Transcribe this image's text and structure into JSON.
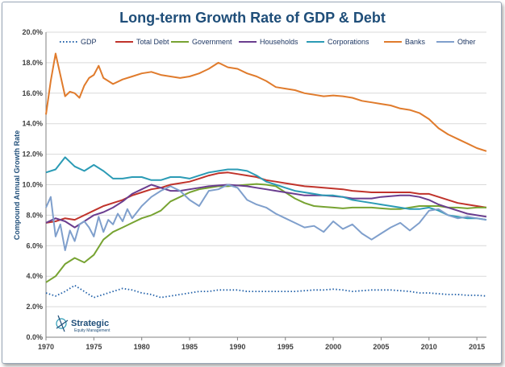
{
  "chart_data": {
    "type": "line",
    "title": "Long-term Growth Rate of GDP & Debt",
    "ylabel": "Compound Annual Growth Rate",
    "xlabel": "",
    "xlim": [
      1970,
      2016
    ],
    "ylim": [
      0,
      20
    ],
    "x_ticks": [
      "1970",
      "1975",
      "1980",
      "1985",
      "1990",
      "1995",
      "2000",
      "2005",
      "2010",
      "2015"
    ],
    "y_ticks": [
      "0.0%",
      "2.0%",
      "4.0%",
      "6.0%",
      "8.0%",
      "10.0%",
      "12.0%",
      "14.0%",
      "16.0%",
      "18.0%",
      "20.0%"
    ],
    "grid": true,
    "legend_position": "top",
    "series": [
      {
        "name": "GDP",
        "color": "#1f5fa8",
        "dash": "dotted",
        "x": [
          1970,
          1971,
          1972,
          1973,
          1974,
          1975,
          1976,
          1977,
          1978,
          1979,
          1980,
          1981,
          1982,
          1983,
          1984,
          1985,
          1986,
          1987,
          1988,
          1989,
          1990,
          1991,
          1992,
          1993,
          1994,
          1995,
          1996,
          1997,
          1998,
          1999,
          2000,
          2001,
          2002,
          2003,
          2004,
          2005,
          2006,
          2007,
          2008,
          2009,
          2010,
          2011,
          2012,
          2013,
          2014,
          2015,
          2016
        ],
        "y": [
          2.9,
          2.7,
          3.0,
          3.4,
          3.0,
          2.6,
          2.8,
          3.0,
          3.2,
          3.1,
          2.9,
          2.8,
          2.6,
          2.7,
          2.8,
          2.9,
          3.0,
          3.0,
          3.1,
          3.1,
          3.1,
          3.0,
          3.0,
          3.0,
          3.0,
          3.0,
          3.0,
          3.05,
          3.1,
          3.1,
          3.15,
          3.1,
          3.0,
          3.05,
          3.1,
          3.1,
          3.1,
          3.05,
          3.0,
          2.9,
          2.9,
          2.85,
          2.8,
          2.8,
          2.75,
          2.75,
          2.7
        ]
      },
      {
        "name": "Total Debt",
        "color": "#c0332b",
        "dash": "solid",
        "x": [
          1970,
          1971,
          1972,
          1973,
          1974,
          1975,
          1976,
          1977,
          1978,
          1979,
          1980,
          1981,
          1982,
          1983,
          1984,
          1985,
          1986,
          1987,
          1988,
          1989,
          1990,
          1991,
          1992,
          1993,
          1994,
          1995,
          1996,
          1997,
          1998,
          1999,
          2000,
          2001,
          2002,
          2003,
          2004,
          2005,
          2006,
          2007,
          2008,
          2009,
          2010,
          2011,
          2012,
          2013,
          2014,
          2015,
          2016
        ],
        "y": [
          7.5,
          7.6,
          7.8,
          7.7,
          8.0,
          8.3,
          8.6,
          8.8,
          9.0,
          9.3,
          9.5,
          9.7,
          9.8,
          10.0,
          10.1,
          10.2,
          10.4,
          10.6,
          10.75,
          10.8,
          10.7,
          10.6,
          10.5,
          10.3,
          10.2,
          10.1,
          10.0,
          9.9,
          9.85,
          9.8,
          9.75,
          9.7,
          9.6,
          9.55,
          9.5,
          9.5,
          9.5,
          9.5,
          9.5,
          9.4,
          9.4,
          9.2,
          9.0,
          8.8,
          8.7,
          8.6,
          8.5
        ]
      },
      {
        "name": "Government",
        "color": "#77a332",
        "dash": "solid",
        "x": [
          1970,
          1971,
          1972,
          1973,
          1974,
          1975,
          1976,
          1977,
          1978,
          1979,
          1980,
          1981,
          1982,
          1983,
          1984,
          1985,
          1986,
          1987,
          1988,
          1989,
          1990,
          1991,
          1992,
          1993,
          1994,
          1995,
          1996,
          1997,
          1998,
          1999,
          2000,
          2001,
          2002,
          2003,
          2004,
          2005,
          2006,
          2007,
          2008,
          2009,
          2010,
          2011,
          2012,
          2013,
          2014,
          2015,
          2016
        ],
        "y": [
          3.6,
          4.0,
          4.8,
          5.2,
          4.9,
          5.4,
          6.4,
          6.9,
          7.2,
          7.5,
          7.8,
          8.0,
          8.3,
          8.9,
          9.2,
          9.5,
          9.7,
          9.8,
          9.9,
          9.9,
          9.95,
          10.0,
          10.05,
          10.0,
          9.9,
          9.5,
          9.1,
          8.8,
          8.6,
          8.55,
          8.5,
          8.45,
          8.5,
          8.5,
          8.5,
          8.45,
          8.4,
          8.4,
          8.5,
          8.6,
          8.6,
          8.6,
          8.5,
          8.5,
          8.45,
          8.5,
          8.5
        ]
      },
      {
        "name": "Households",
        "color": "#6a3d8f",
        "dash": "solid",
        "x": [
          1970,
          1971,
          1972,
          1973,
          1974,
          1975,
          1976,
          1977,
          1978,
          1979,
          1980,
          1981,
          1982,
          1983,
          1984,
          1985,
          1986,
          1987,
          1988,
          1989,
          1990,
          1991,
          1992,
          1993,
          1994,
          1995,
          1996,
          1997,
          1998,
          1999,
          2000,
          2001,
          2002,
          2003,
          2004,
          2005,
          2006,
          2007,
          2008,
          2009,
          2010,
          2011,
          2012,
          2013,
          2014,
          2015,
          2016
        ],
        "y": [
          7.5,
          7.8,
          7.6,
          7.2,
          7.6,
          8.0,
          8.2,
          8.5,
          8.9,
          9.4,
          9.7,
          10.0,
          9.8,
          9.6,
          9.6,
          9.7,
          9.8,
          9.9,
          9.95,
          10.0,
          9.95,
          9.9,
          9.8,
          9.7,
          9.6,
          9.5,
          9.4,
          9.3,
          9.3,
          9.3,
          9.25,
          9.2,
          9.1,
          9.1,
          9.1,
          9.2,
          9.25,
          9.3,
          9.3,
          9.2,
          9.0,
          8.7,
          8.5,
          8.3,
          8.1,
          8.0,
          7.9
        ]
      },
      {
        "name": "Corporations",
        "color": "#2b9bb5",
        "dash": "solid",
        "x": [
          1970,
          1971,
          1972,
          1973,
          1974,
          1975,
          1976,
          1977,
          1978,
          1979,
          1980,
          1981,
          1982,
          1983,
          1984,
          1985,
          1986,
          1987,
          1988,
          1989,
          1990,
          1991,
          1992,
          1993,
          1994,
          1995,
          1996,
          1997,
          1998,
          1999,
          2000,
          2001,
          2002,
          2003,
          2004,
          2005,
          2006,
          2007,
          2008,
          2009,
          2010,
          2011,
          2012,
          2013,
          2014,
          2015,
          2016
        ],
        "y": [
          10.8,
          11.0,
          11.8,
          11.2,
          10.9,
          11.3,
          10.9,
          10.4,
          10.4,
          10.5,
          10.5,
          10.3,
          10.3,
          10.5,
          10.5,
          10.4,
          10.6,
          10.8,
          10.9,
          11.0,
          11.0,
          10.9,
          10.6,
          10.2,
          10.0,
          9.8,
          9.6,
          9.5,
          9.4,
          9.3,
          9.3,
          9.2,
          9.0,
          8.9,
          8.8,
          8.7,
          8.6,
          8.5,
          8.4,
          8.4,
          8.5,
          8.3,
          8.0,
          7.9,
          7.8,
          7.8,
          7.7
        ]
      },
      {
        "name": "Banks",
        "color": "#e07b2c",
        "dash": "solid",
        "x": [
          1970,
          1970.5,
          1971,
          1971.5,
          1972,
          1972.5,
          1973,
          1973.5,
          1974,
          1974.5,
          1975,
          1975.5,
          1976,
          1976.5,
          1977,
          1978,
          1979,
          1980,
          1981,
          1982,
          1983,
          1984,
          1985,
          1986,
          1987,
          1988,
          1989,
          1990,
          1991,
          1992,
          1993,
          1994,
          1995,
          1996,
          1997,
          1998,
          1999,
          2000,
          2001,
          2002,
          2003,
          2004,
          2005,
          2006,
          2007,
          2008,
          2009,
          2010,
          2011,
          2012,
          2013,
          2014,
          2015,
          2016
        ],
        "y": [
          14.6,
          16.8,
          18.6,
          17.2,
          15.8,
          16.1,
          16.0,
          15.7,
          16.5,
          17.0,
          17.2,
          17.8,
          17.0,
          16.8,
          16.6,
          16.9,
          17.1,
          17.3,
          17.4,
          17.2,
          17.1,
          17.0,
          17.1,
          17.3,
          17.6,
          18.0,
          17.7,
          17.6,
          17.3,
          17.1,
          16.8,
          16.4,
          16.3,
          16.2,
          16.0,
          15.9,
          15.8,
          15.85,
          15.8,
          15.7,
          15.5,
          15.4,
          15.3,
          15.2,
          15.0,
          14.9,
          14.7,
          14.3,
          13.7,
          13.3,
          13.0,
          12.7,
          12.4,
          12.2
        ]
      },
      {
        "name": "Other",
        "color": "#7f9fcc",
        "dash": "solid",
        "x": [
          1970,
          1970.5,
          1971,
          1971.5,
          1972,
          1972.5,
          1973,
          1973.5,
          1974,
          1974.5,
          1975,
          1975.5,
          1976,
          1976.5,
          1977,
          1977.5,
          1978,
          1978.5,
          1979,
          1980,
          1981,
          1982,
          1983,
          1984,
          1985,
          1986,
          1987,
          1988,
          1989,
          1990,
          1991,
          1992,
          1993,
          1994,
          1995,
          1996,
          1997,
          1998,
          1999,
          2000,
          2001,
          2002,
          2003,
          2004,
          2005,
          2006,
          2007,
          2008,
          2009,
          2010,
          2011,
          2012,
          2013,
          2014,
          2015,
          2016
        ],
        "y": [
          8.5,
          9.2,
          6.6,
          7.4,
          5.7,
          7.0,
          6.3,
          7.4,
          7.6,
          7.2,
          6.6,
          7.9,
          6.9,
          7.7,
          7.4,
          8.1,
          7.6,
          8.4,
          7.8,
          8.6,
          9.2,
          9.6,
          9.9,
          9.6,
          9.0,
          8.6,
          9.6,
          9.7,
          10.0,
          9.8,
          9.0,
          8.7,
          8.5,
          8.1,
          7.8,
          7.5,
          7.2,
          7.3,
          6.9,
          7.6,
          7.1,
          7.4,
          6.8,
          6.4,
          6.8,
          7.2,
          7.5,
          7.0,
          7.5,
          8.3,
          8.4,
          8.0,
          7.8,
          7.9,
          7.8,
          7.7
        ]
      }
    ]
  },
  "logo": {
    "name": "Strategic",
    "sub": "Equity Management"
  }
}
